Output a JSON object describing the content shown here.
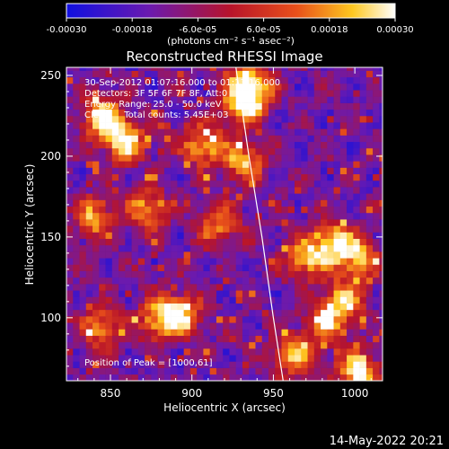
{
  "chart_data": {
    "type": "heatmap",
    "title": "Reconstructed RHESSI Image",
    "xlabel": "Heliocentric X (arcsec)",
    "ylabel": "Heliocentric Y (arcsec)",
    "xlim": [
      823,
      1017
    ],
    "ylim": [
      61,
      255
    ],
    "xticks": [
      850,
      900,
      950,
      1000
    ],
    "yticks": [
      100,
      150,
      200,
      250
    ],
    "colorbar": {
      "range": [
        -0.0003,
        0.0003
      ],
      "tick_values": [
        -0.0003,
        -0.00018,
        -6e-05,
        6e-05,
        0.00018,
        0.0003
      ],
      "tick_labels": [
        "-0.00030",
        "-0.00018",
        "-6.0e-05",
        "6.0e-05",
        "0.00018",
        "0.00030"
      ],
      "unit_label": "(photons cm⁻² s⁻¹ asec⁻²)",
      "colors": [
        "#1010e0",
        "#6a1ab0",
        "#b8142a",
        "#e8501a",
        "#ffc820",
        "#ffffff"
      ]
    },
    "annotations": [
      "30-Sep-2012 01:07:16.000 to 01:13:16.000",
      "Detectors: 3F 5F 6F 7F 8F, Att:0",
      "Energy Range: 25.0 - 50.0 keV",
      "Clean     Total counts: 5.45E+03"
    ],
    "peak_label": "Position of Peak = [1000,61]",
    "peak_position": [
      1000,
      61
    ],
    "limb": {
      "x": [
        927,
        935,
        943,
        950,
        956
      ],
      "y": [
        255,
        200,
        150,
        100,
        61
      ]
    },
    "bright_regions": [
      {
        "x": 843,
        "y": 222,
        "level": 0.95
      },
      {
        "x": 857,
        "y": 207,
        "level": 0.9
      },
      {
        "x": 905,
        "y": 205,
        "level": 0.8
      },
      {
        "x": 930,
        "y": 230,
        "level": 0.9
      },
      {
        "x": 934,
        "y": 243,
        "level": 0.95
      },
      {
        "x": 930,
        "y": 195,
        "level": 0.75
      },
      {
        "x": 870,
        "y": 165,
        "level": 0.7
      },
      {
        "x": 838,
        "y": 160,
        "level": 0.7
      },
      {
        "x": 985,
        "y": 145,
        "level": 0.85
      },
      {
        "x": 968,
        "y": 135,
        "level": 0.8
      },
      {
        "x": 1000,
        "y": 135,
        "level": 0.75
      },
      {
        "x": 892,
        "y": 100,
        "level": 0.8
      },
      {
        "x": 878,
        "y": 97,
        "level": 0.75
      },
      {
        "x": 980,
        "y": 95,
        "level": 0.75
      },
      {
        "x": 992,
        "y": 110,
        "level": 0.7
      },
      {
        "x": 1000,
        "y": 64,
        "level": 1.0
      },
      {
        "x": 843,
        "y": 92,
        "level": 0.7
      },
      {
        "x": 960,
        "y": 75,
        "level": 0.7
      },
      {
        "x": 915,
        "y": 155,
        "level": 0.65
      }
    ]
  },
  "date_stamp": "14-May-2022 20:21"
}
